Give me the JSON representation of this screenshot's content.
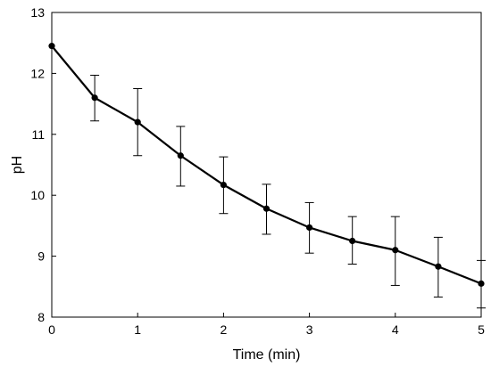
{
  "chart_data": {
    "type": "line",
    "title": "",
    "xlabel": "Time (min)",
    "ylabel": "pH",
    "xlim": [
      0,
      5
    ],
    "ylim": [
      8,
      13
    ],
    "xticks": [
      0,
      1,
      2,
      3,
      4,
      5
    ],
    "yticks": [
      8,
      9,
      10,
      11,
      12,
      13
    ],
    "grid": false,
    "series": [
      {
        "x": [
          0,
          0.5,
          1,
          1.5,
          2,
          2.5,
          3,
          3.5,
          4,
          4.5,
          5
        ],
        "y": [
          12.45,
          11.6,
          11.2,
          10.65,
          10.17,
          9.78,
          9.47,
          9.25,
          9.1,
          8.83,
          8.55
        ],
        "err_low": [
          null,
          11.22,
          10.65,
          10.15,
          9.7,
          9.36,
          9.05,
          8.87,
          8.52,
          8.33,
          8.15
        ],
        "err_high": [
          null,
          11.97,
          11.75,
          11.13,
          10.63,
          10.18,
          9.88,
          9.65,
          9.65,
          9.31,
          8.93
        ],
        "color": "#000000"
      }
    ]
  }
}
